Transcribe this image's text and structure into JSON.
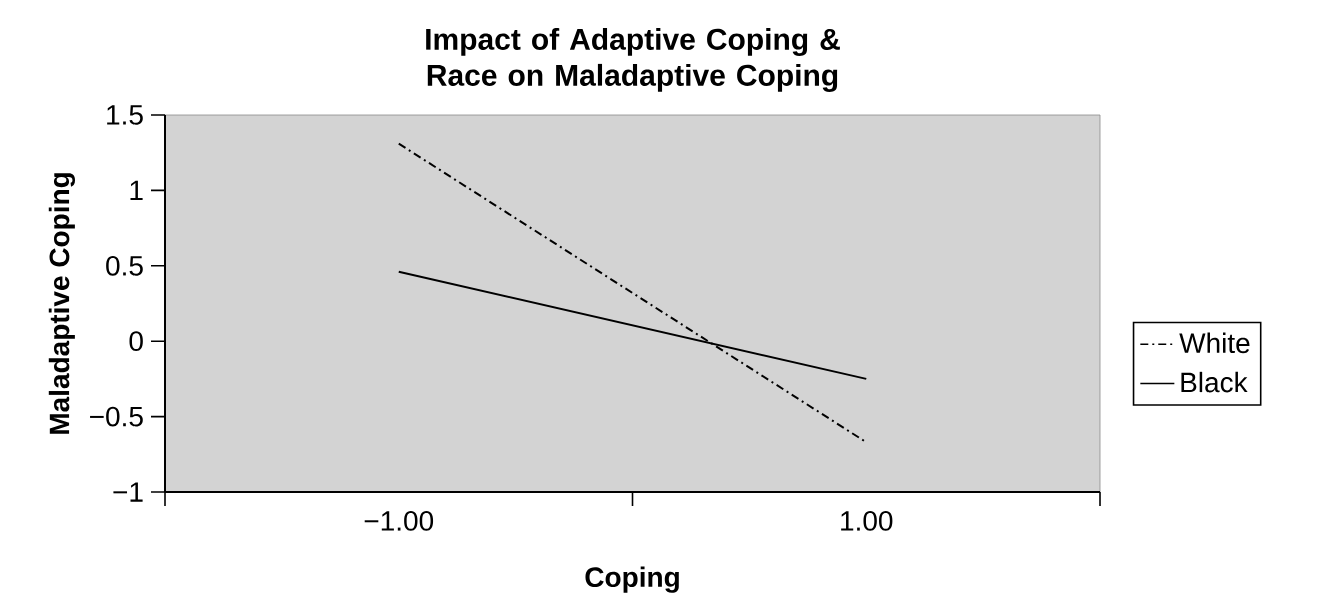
{
  "chart_data": {
    "type": "line",
    "title": "Impact of Adaptive Coping & Race on Maladaptive Coping",
    "xlabel": "Coping",
    "ylabel": "Maladaptive Coping",
    "categories": [
      "−1.00",
      "1.00"
    ],
    "series": [
      {
        "name": "White",
        "color": "#000000",
        "line_style": "dashdot",
        "values": [
          1.31,
          -0.67
        ]
      },
      {
        "name": "Black",
        "color": "#000000",
        "line_style": "solid",
        "values": [
          0.46,
          -0.25
        ]
      }
    ],
    "ylim": [
      -1,
      1.5
    ],
    "yticks": [
      {
        "value": -1,
        "label": "−1"
      },
      {
        "value": -0.5,
        "label": "−0.5"
      },
      0,
      0.5,
      1,
      1.5
    ],
    "legend": "right",
    "marker": "none"
  }
}
